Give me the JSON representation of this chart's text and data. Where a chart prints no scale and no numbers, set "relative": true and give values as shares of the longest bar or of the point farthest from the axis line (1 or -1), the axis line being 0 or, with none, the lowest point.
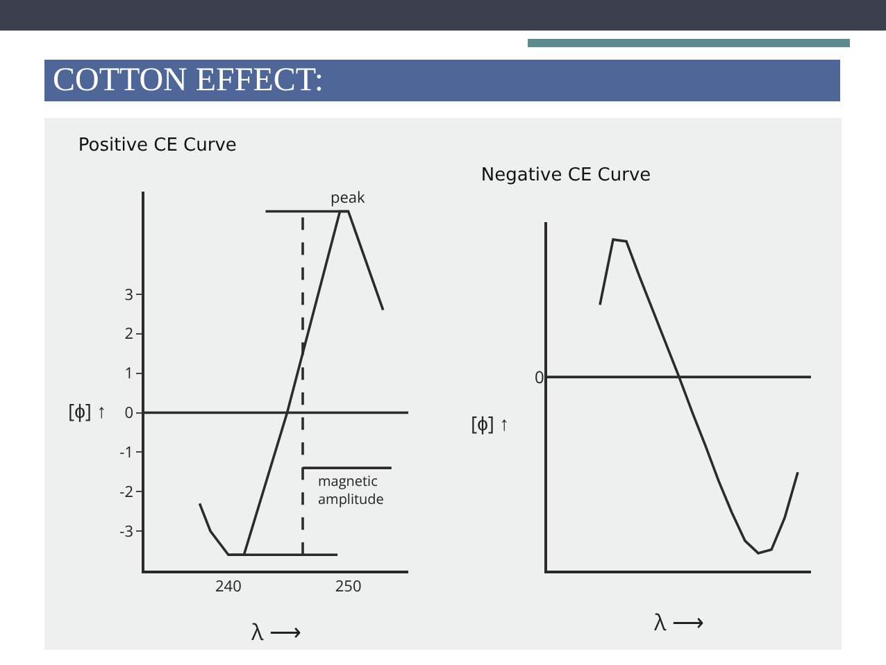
{
  "chart_data": [
    {
      "type": "other",
      "title": "COTTON EFFECT:"
    },
    {
      "type": "line",
      "title": "Positive CE Curve",
      "xlabel": "λ ⟶",
      "ylabel": "[ϕ] ↑",
      "marker": "none",
      "xlim": [
        233,
        255
      ],
      "xticks": [
        240,
        250
      ],
      "ylim": [
        -4,
        5.6
      ],
      "yticks": [
        -3,
        -2,
        -1,
        0,
        1,
        2,
        3
      ],
      "series": [
        {
          "color": "#2b2b2b",
          "x": [
            237.6,
            238.5,
            240,
            241.3,
            244.9,
            249.3,
            250,
            252.9
          ],
          "values": [
            -2.3,
            -3,
            -3.6,
            -3.6,
            0,
            5.1,
            5.1,
            2.6
          ]
        },
        {
          "color": "#2b2b2b",
          "x": [
            243.1,
            250
          ],
          "values": [
            5.1,
            5.1
          ]
        },
        {
          "color": "#2b2b2b",
          "x": [
            240,
            249.1
          ],
          "values": [
            -3.6,
            -3.6
          ]
        },
        {
          "color": "#2b2b2b",
          "line_style": "dashed",
          "x": [
            246.2,
            246.2
          ],
          "values": [
            -3.6,
            5.1
          ]
        },
        {
          "color": "#2b2b2b",
          "x": [
            246.2,
            253.6
          ],
          "values": [
            -1.4,
            -1.4
          ]
        }
      ],
      "ref_lines": [
        {
          "axis": "y",
          "value": 0,
          "color": "#2b2b2b"
        }
      ],
      "annotations": [
        {
          "text": "peak",
          "x": 250,
          "y": 5.1
        },
        "magnetic amplitude"
      ]
    },
    {
      "type": "line",
      "title": "Negative CE Curve",
      "xlabel": "λ ⟶",
      "ylabel": "[ϕ] ↑",
      "relative": true,
      "marker": "none",
      "categories": [
        null,
        null,
        null,
        null,
        null,
        null,
        null,
        null,
        null,
        null,
        null,
        null,
        null,
        null,
        null,
        null,
        null,
        null,
        null,
        null,
        null
      ],
      "series": [
        {
          "color": "#2b2b2b",
          "values": [
            null,
            null,
            null,
            null,
            0.41,
            0.78,
            0.77,
            0.57,
            0.38,
            0.19,
            0,
            -0.2,
            -0.39,
            -0.59,
            -0.77,
            -0.93,
            -1,
            -0.98,
            -0.8,
            -0.54,
            null
          ]
        }
      ],
      "ref_lines": [
        {
          "axis": "y",
          "value": 0,
          "label": "0",
          "color": "#2b2b2b"
        }
      ]
    }
  ]
}
